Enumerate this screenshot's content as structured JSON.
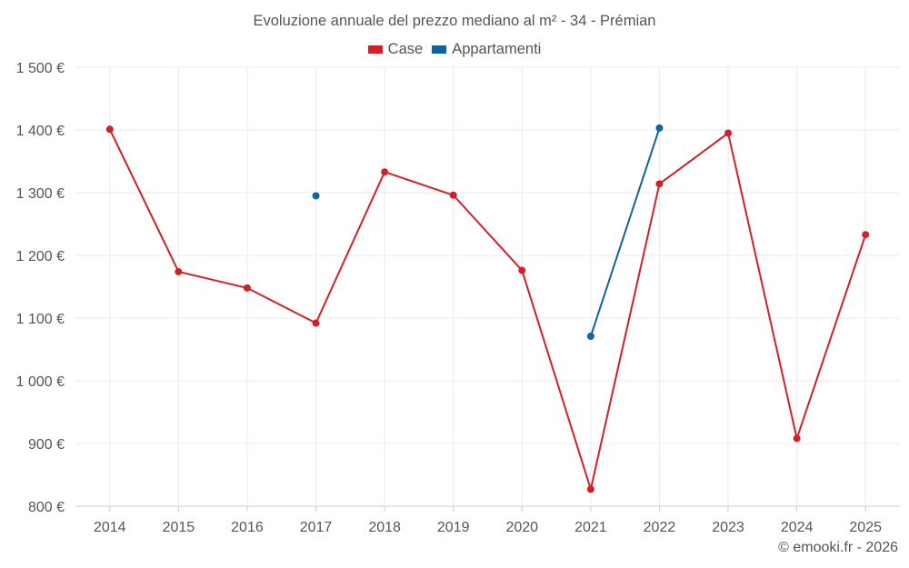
{
  "chart_data": {
    "type": "line",
    "title": "Evoluzione annuale del prezzo mediano al m² - 34 - Prémian",
    "categories": [
      "2014",
      "2015",
      "2016",
      "2017",
      "2018",
      "2019",
      "2020",
      "2021",
      "2022",
      "2023",
      "2024",
      "2025"
    ],
    "series": [
      {
        "name": "Case",
        "color": "#d32027",
        "values": [
          1401,
          1174,
          1148,
          1092,
          1333,
          1296,
          1176,
          827,
          1314,
          1395,
          908,
          1233
        ]
      },
      {
        "name": "Appartamenti",
        "color": "#0e63a0",
        "values": [
          null,
          null,
          null,
          1295,
          null,
          null,
          null,
          1071,
          1403,
          null,
          null,
          null
        ]
      }
    ],
    "xlabel": "",
    "ylabel": "",
    "ylim": [
      800,
      1500
    ],
    "yticks": [
      800,
      900,
      1000,
      1100,
      1200,
      1300,
      1400,
      1500
    ],
    "ytick_labels": [
      "800 €",
      "900 €",
      "1 000 €",
      "1 100 €",
      "1 200 €",
      "1 300 €",
      "1 400 €",
      "1 500 €"
    ],
    "grid": true,
    "legend_position": "top-center"
  },
  "credit": "© emooki.fr - 2026"
}
